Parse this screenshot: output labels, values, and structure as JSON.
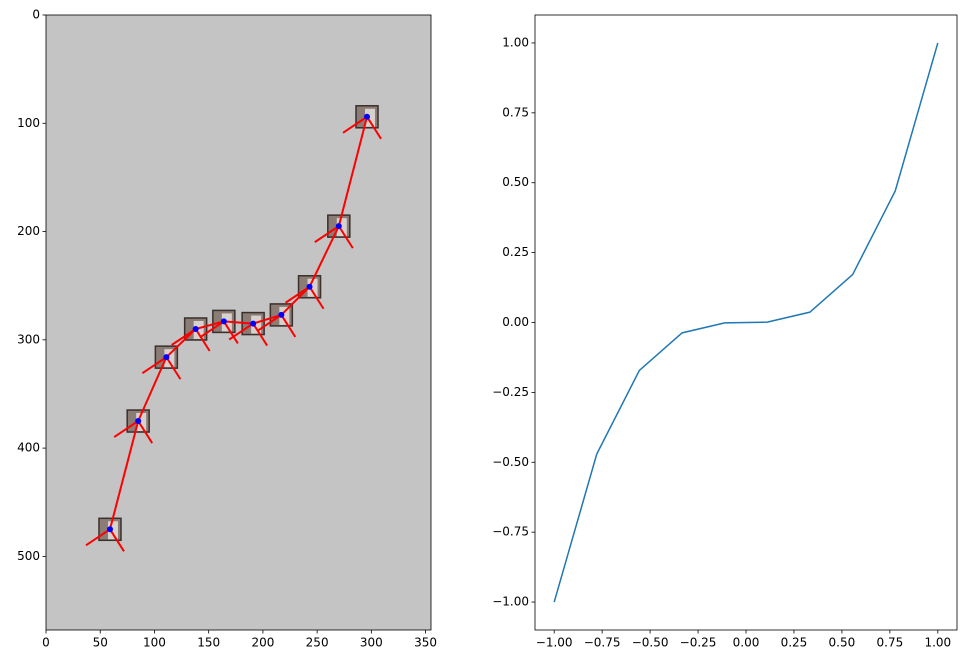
{
  "chart_data": [
    {
      "type": "scatter",
      "x": [
        59,
        85,
        111,
        138,
        164,
        191,
        217,
        243,
        270,
        296
      ],
      "values": [
        475,
        375,
        316,
        290,
        283,
        285,
        277,
        251,
        195,
        94
      ],
      "color": "#0000ff",
      "line_color": "#ff0000",
      "background": "#c4c4c4",
      "xlim": [
        0,
        355
      ],
      "ylim": [
        568,
        0
      ],
      "xticks": [
        0,
        50,
        100,
        150,
        200,
        250,
        300,
        350
      ],
      "yticks": [
        0,
        100,
        200,
        300,
        400,
        500
      ]
    },
    {
      "type": "line",
      "x": [
        -1,
        -0.778,
        -0.556,
        -0.333,
        -0.111,
        0.111,
        0.333,
        0.556,
        0.778,
        1
      ],
      "values": [
        -1,
        -0.4705,
        -0.1715,
        -0.037,
        -0.0014,
        0.0014,
        0.037,
        0.1715,
        0.4705,
        1
      ],
      "color": "#1f77b4",
      "xlim": [
        -1.1,
        1.1
      ],
      "ylim": [
        -1.1,
        1.1
      ],
      "xticks": [
        {
          "value": -1,
          "label": "−1.00"
        },
        {
          "value": -0.75,
          "label": "−0.75"
        },
        {
          "value": -0.5,
          "label": "−0.50"
        },
        {
          "value": -0.25,
          "label": "−0.25"
        },
        {
          "value": 0,
          "label": "0.00"
        },
        {
          "value": 0.25,
          "label": "0.25"
        },
        {
          "value": 0.5,
          "label": "0.50"
        },
        {
          "value": 0.75,
          "label": "0.75"
        },
        {
          "value": 1,
          "label": "1.00"
        }
      ],
      "yticks": [
        {
          "value": -1,
          "label": "−1.00"
        },
        {
          "value": -0.75,
          "label": "−0.75"
        },
        {
          "value": -0.5,
          "label": "−0.50"
        },
        {
          "value": -0.25,
          "label": "−0.25"
        },
        {
          "value": 0,
          "label": "0.00"
        },
        {
          "value": 0.25,
          "label": "0.25"
        },
        {
          "value": 0.5,
          "label": "0.50"
        },
        {
          "value": 0.75,
          "label": "0.75"
        },
        {
          "value": 1,
          "label": "1.00"
        }
      ]
    }
  ]
}
